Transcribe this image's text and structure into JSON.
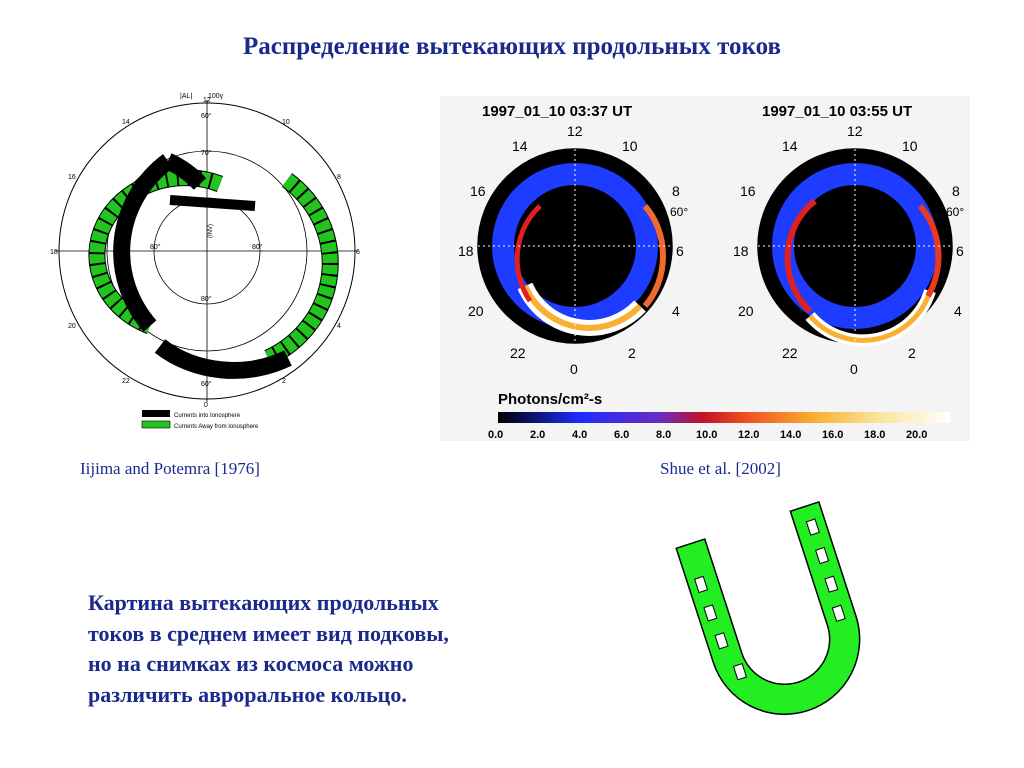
{
  "title": "Распределение вытекающих продольных токов",
  "left_figure": {
    "header_left": "|AL|",
    "header_right": "100γ",
    "hour_labels": [
      "12",
      "14",
      "10",
      "16",
      "8",
      "18",
      "6",
      "20",
      "4",
      "22",
      "2",
      "0"
    ],
    "lat_labels": [
      "60°",
      "70°",
      "80°",
      "80°",
      "80°",
      "60°"
    ],
    "axis_label": "(INV)",
    "legend": {
      "into": "Currents into Ionosphere",
      "away": "Currents Away from Ionosphere"
    },
    "colors": {
      "into": "#000000",
      "away": "#22c41e"
    }
  },
  "right_figure": {
    "panels": [
      {
        "timestamp": "1997_01_10 03:37 UT"
      },
      {
        "timestamp": "1997_01_10 03:55 UT"
      }
    ],
    "hour_labels": [
      "12",
      "14",
      "10",
      "16",
      "8",
      "18",
      "6",
      "20",
      "4",
      "22",
      "2",
      "0"
    ],
    "lat_label": "60°",
    "colorbar_title": "Photons/cm²-s",
    "colorbar_ticks": [
      "0.0",
      "2.0",
      "4.0",
      "6.0",
      "8.0",
      "10.0",
      "12.0",
      "14.0",
      "16.0",
      "18.0",
      "20.0"
    ]
  },
  "captions": {
    "left": "Iijima and Potemra [1976]",
    "right": "Shue et al. [2002]"
  },
  "body_text": [
    "Картина вытекающих продольных",
    "токов в среднем имеет вид подковы,",
    "но на снимках из космоса можно",
    "различить авроральное кольцо."
  ],
  "horseshoe_color": "#22ee22"
}
